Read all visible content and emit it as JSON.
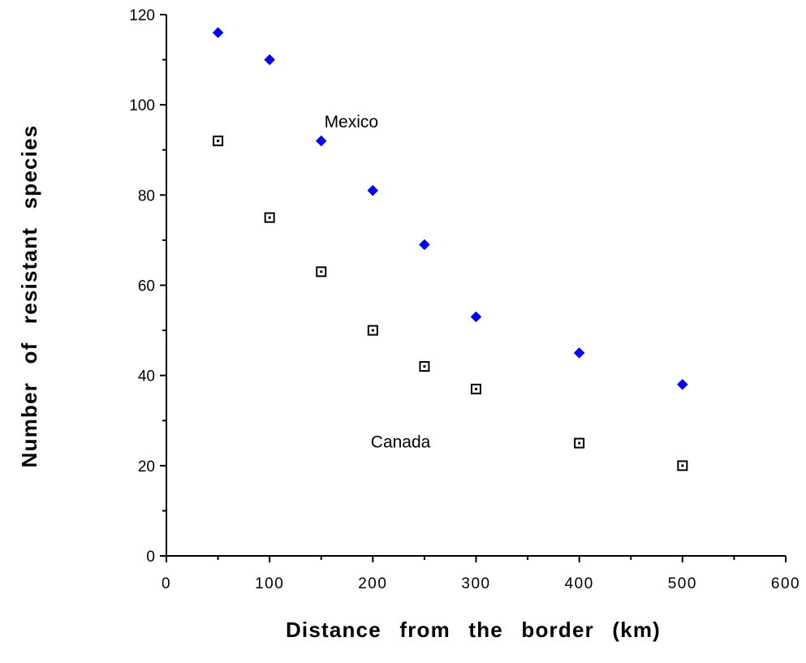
{
  "chart_data": {
    "type": "scatter",
    "title": "",
    "xlabel": "Distance from the border (km)",
    "ylabel": "Number of resistant species",
    "xlim": [
      0,
      600
    ],
    "ylim": [
      0,
      120
    ],
    "x_ticks": [
      0,
      100,
      200,
      300,
      400,
      500,
      600
    ],
    "y_ticks": [
      0,
      20,
      40,
      60,
      80,
      100,
      120
    ],
    "grid": false,
    "series": [
      {
        "name": "Mexico",
        "marker": "diamond",
        "color": "#0000ff",
        "x": [
          50,
          100,
          150,
          200,
          250,
          300,
          400,
          500
        ],
        "y": [
          116,
          110,
          92,
          81,
          69,
          53,
          45,
          38
        ]
      },
      {
        "name": "Canada",
        "marker": "open-square",
        "color": "#000000",
        "x": [
          50,
          100,
          150,
          200,
          250,
          300,
          400,
          500
        ],
        "y": [
          92,
          75,
          63,
          50,
          42,
          37,
          25,
          20
        ]
      }
    ],
    "annotations": [
      {
        "text": "Mexico",
        "x": 153,
        "y": 95
      },
      {
        "text": "Canada",
        "x": 198,
        "y": 24
      }
    ]
  }
}
